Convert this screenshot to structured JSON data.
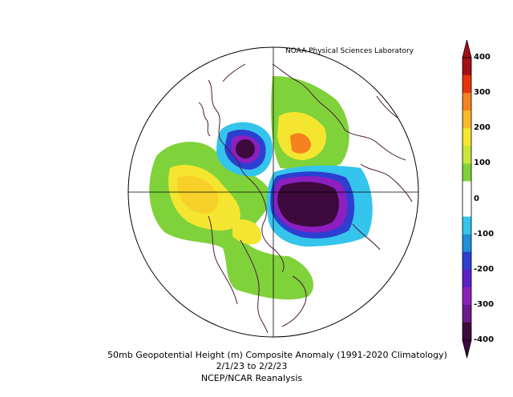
{
  "credit": "NOAA Physical Sciences Laboratory",
  "caption": {
    "line1": "50mb Geopotential Height (m) Composite Anomaly (1991-2020 Climatology)",
    "line2": "2/1/23  to 2/2/23",
    "line3": "NCEP/NCAR Reanalysis"
  },
  "colorbar": {
    "ticks": [
      "400",
      "300",
      "200",
      "100",
      "0",
      "-100",
      "-200",
      "-300",
      "-400"
    ],
    "colors": [
      "#a50f15",
      "#e8340c",
      "#f6821f",
      "#f8b92a",
      "#f4e630",
      "#c9e63a",
      "#7fd23a",
      "#ffffff",
      "#ffffff",
      "#35c4ec",
      "#1f8fd8",
      "#2b3fd0",
      "#5b1fc8",
      "#8d1fc0",
      "#6a1a8c",
      "#3c0a3c"
    ]
  }
}
